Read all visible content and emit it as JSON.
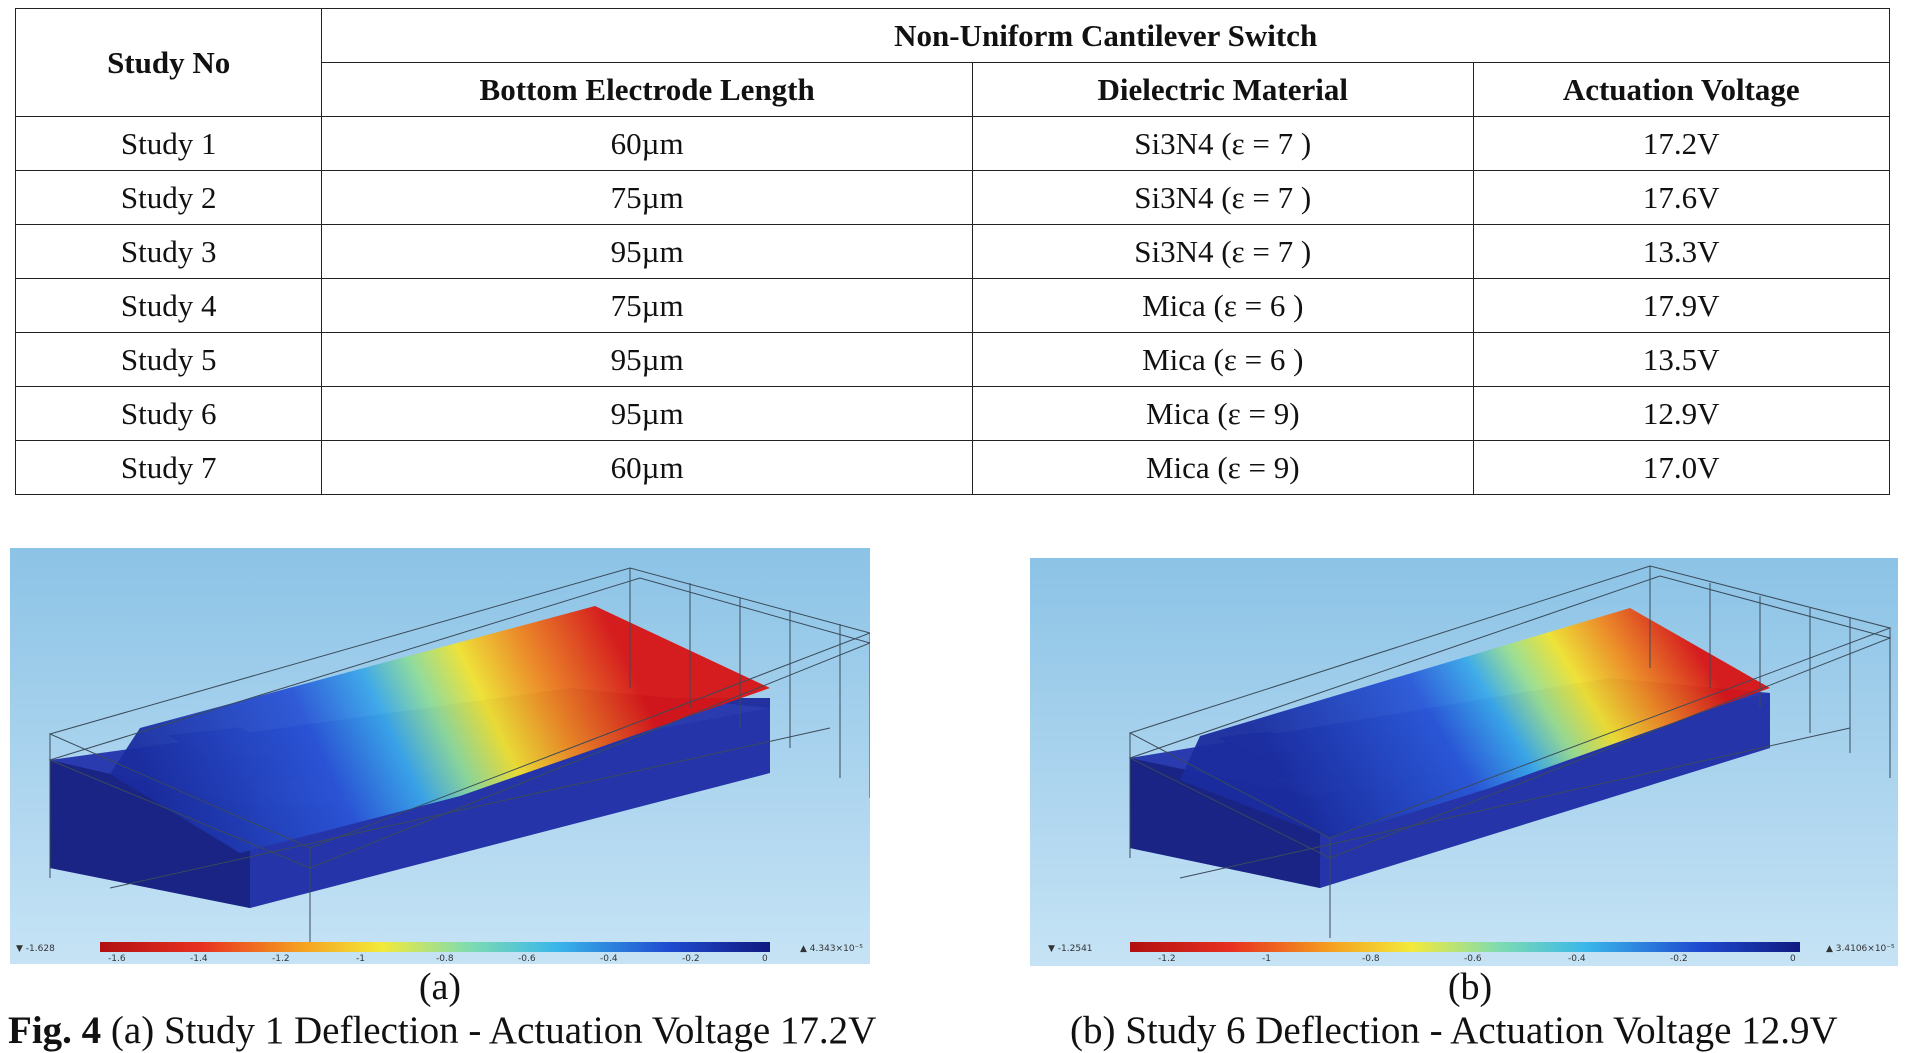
{
  "table": {
    "headers": {
      "study_no": "Study No",
      "group": "Non-Uniform Cantilever Switch",
      "bottom_electrode": "Bottom Electrode Length",
      "dielectric": "Dielectric Material",
      "voltage": "Actuation Voltage"
    },
    "rows": [
      {
        "study": "Study 1",
        "length": "60µm",
        "material": "Si3N4 (ε = 7 )",
        "voltage": "17.2V"
      },
      {
        "study": "Study 2",
        "length": "75µm",
        "material": "Si3N4  (ε = 7 )",
        "voltage": "17.6V"
      },
      {
        "study": "Study 3",
        "length": "95µm",
        "material": "Si3N4  (ε = 7 )",
        "voltage": "13.3V"
      },
      {
        "study": "Study 4",
        "length": "75µm",
        "material": "Mica  (ε = 6 )",
        "voltage": "17.9V"
      },
      {
        "study": "Study 5",
        "length": "95µm",
        "material": "Mica  (ε = 6 )",
        "voltage": "13.5V"
      },
      {
        "study": "Study 6",
        "length": "95µm",
        "material": "Mica  (ε = 9)",
        "voltage": "12.9V"
      },
      {
        "study": "Study 7",
        "length": "60µm",
        "material": "Mica  (ε = 9)",
        "voltage": "17.0V"
      }
    ]
  },
  "figures": {
    "a": {
      "sublabel": "(a)",
      "colorbar_min": "▼ -1.628",
      "colorbar_max": "▲ 4.343×10⁻⁵",
      "ticks": [
        "-1.6",
        "-1.4",
        "-1.2",
        "-1",
        "-0.8",
        "-0.6",
        "-0.4",
        "-0.2",
        "0"
      ]
    },
    "b": {
      "sublabel": "(b)",
      "colorbar_min": "▼ -1.2541",
      "colorbar_max": "▲ 3.4106×10⁻⁵",
      "ticks": [
        "-1.2",
        "-1",
        "-0.8",
        "-0.6",
        "-0.4",
        "-0.2",
        "0"
      ]
    }
  },
  "caption": {
    "fig_label": "Fig. 4",
    "left_text": " (a) Study 1 Deflection - Actuation Voltage 17.2V",
    "right_text": "(b) Study 6 Deflection - Actuation Voltage 12.9V"
  },
  "colors": {
    "sky_top": "#8fc4e6",
    "sky_bottom": "#c4e2f4",
    "substrate": "#1f2a9c",
    "deflect_low": "#d81616",
    "deflect_high": "#1b2fa8"
  }
}
